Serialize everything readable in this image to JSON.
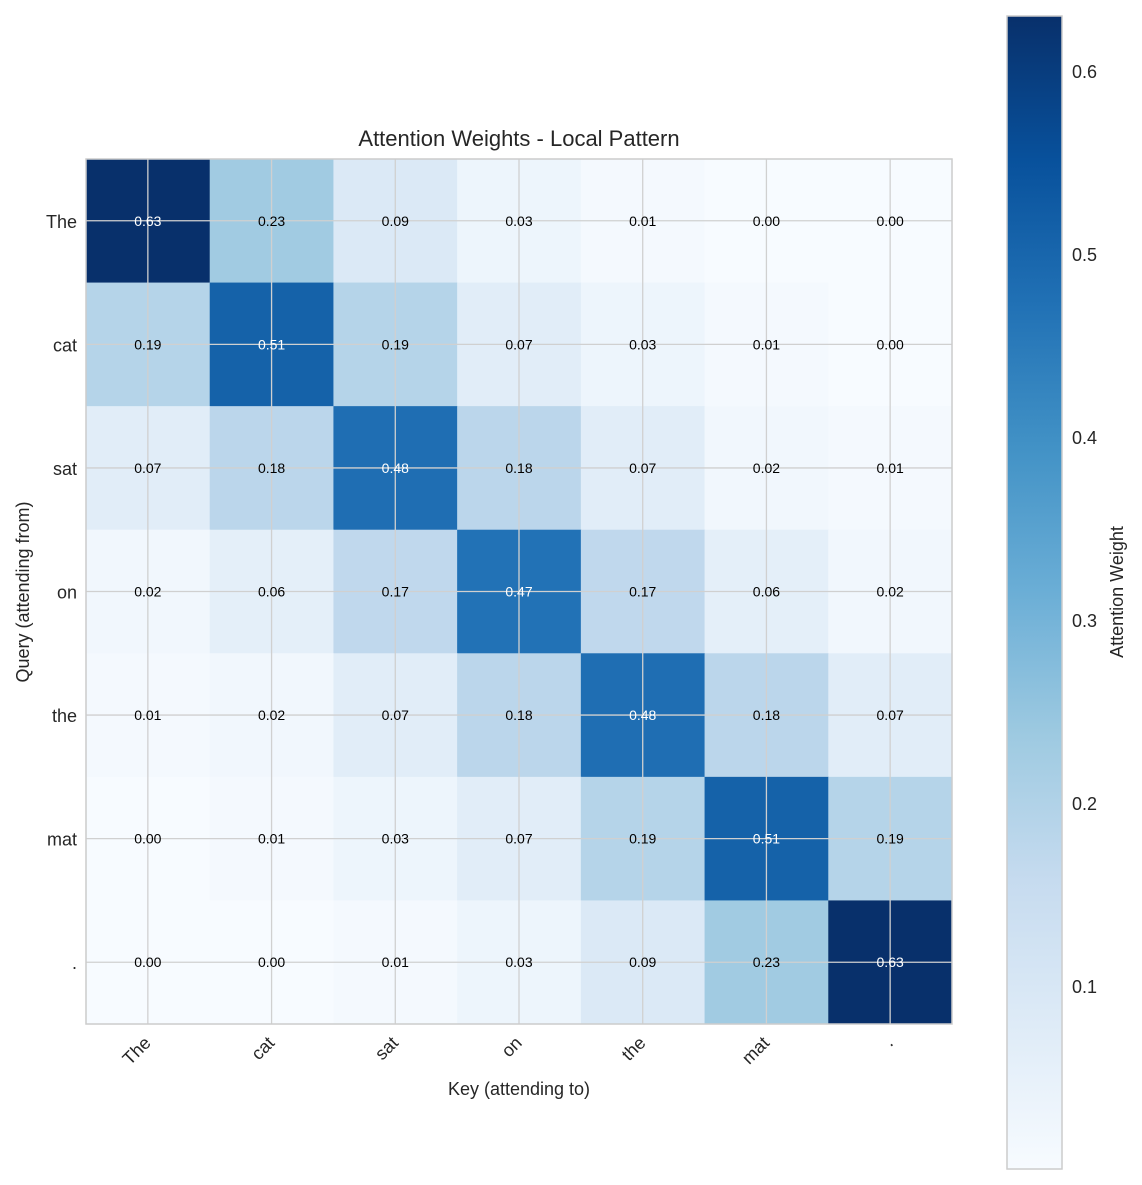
{
  "chart_data": {
    "type": "heatmap",
    "title": "Attention Weights - Local Pattern",
    "xlabel": "Key (attending to)",
    "ylabel": "Query (attending from)",
    "x_categories": [
      "The",
      "cat",
      "sat",
      "on",
      "the",
      "mat",
      "."
    ],
    "y_categories": [
      "The",
      "cat",
      "sat",
      "on",
      "the",
      "mat",
      "."
    ],
    "values": [
      [
        0.63,
        0.23,
        0.09,
        0.03,
        0.01,
        0.0,
        0.0
      ],
      [
        0.19,
        0.51,
        0.19,
        0.07,
        0.03,
        0.01,
        0.0
      ],
      [
        0.07,
        0.18,
        0.48,
        0.18,
        0.07,
        0.02,
        0.01
      ],
      [
        0.02,
        0.06,
        0.17,
        0.47,
        0.17,
        0.06,
        0.02
      ],
      [
        0.01,
        0.02,
        0.07,
        0.18,
        0.48,
        0.18,
        0.07
      ],
      [
        0.0,
        0.01,
        0.03,
        0.07,
        0.19,
        0.51,
        0.19
      ],
      [
        0.0,
        0.0,
        0.01,
        0.03,
        0.09,
        0.23,
        0.63
      ]
    ],
    "colormap": "Blues",
    "vmin": 0.0,
    "vmax": 0.63,
    "grid": true,
    "colorbar": {
      "label": "Attention Weight",
      "ticks": [
        "0.1",
        "0.2",
        "0.3",
        "0.4",
        "0.5",
        "0.6"
      ],
      "tick_values": [
        0.1,
        0.2,
        0.3,
        0.4,
        0.5,
        0.6
      ]
    }
  }
}
